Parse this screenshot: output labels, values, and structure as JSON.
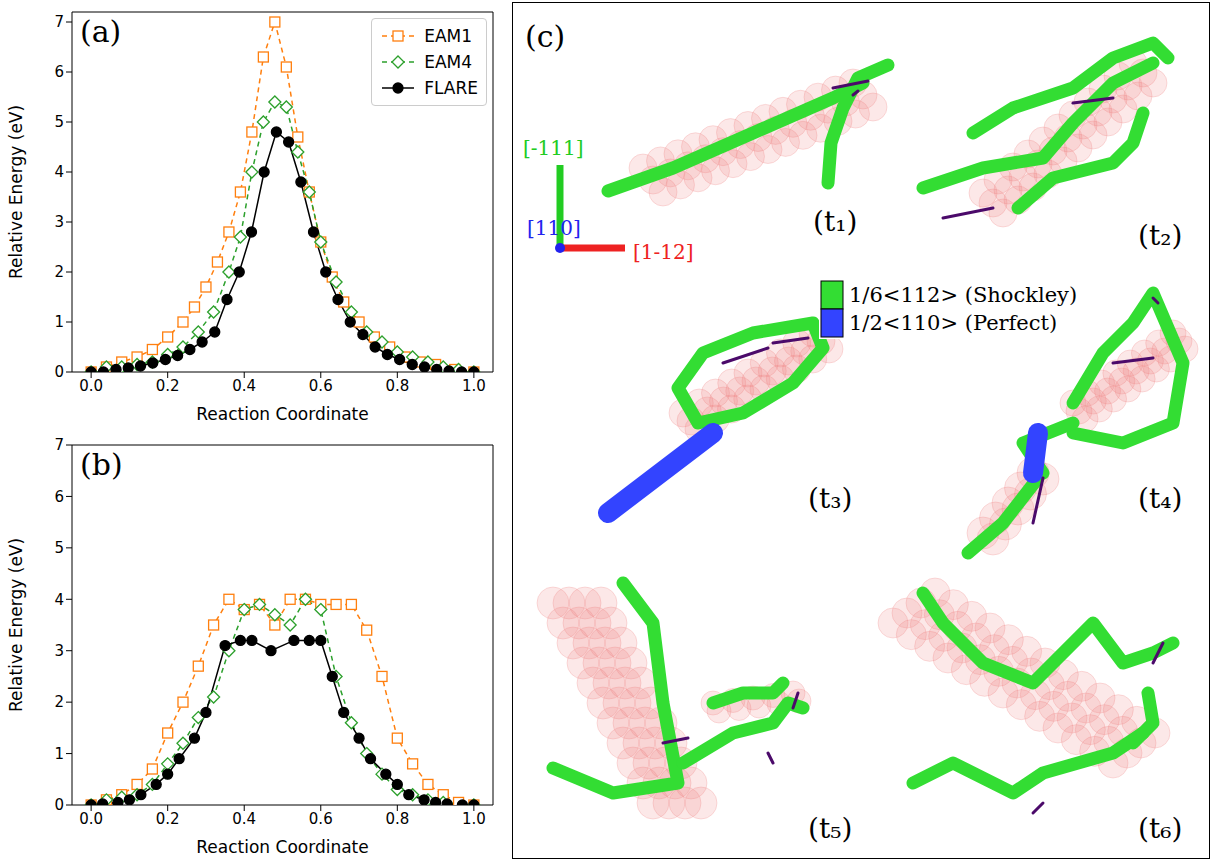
{
  "chart_data": [
    {
      "type": "line",
      "title": "(a)",
      "x_label": "Reaction Coordinate",
      "y_label": "Relative Energy (eV)",
      "xlim": [
        -0.05,
        1.05
      ],
      "ylim": [
        0,
        7.2
      ],
      "xticks": [
        {
          "value": 0,
          "label": "0.0"
        },
        {
          "value": 0.2,
          "label": "0.2"
        },
        {
          "value": 0.4,
          "label": "0.4"
        },
        {
          "value": 0.6,
          "label": "0.6"
        },
        {
          "value": 0.8,
          "label": "0.8"
        },
        {
          "value": 1,
          "label": "1.0"
        }
      ],
      "yticks": [
        0,
        1,
        2,
        3,
        4,
        5,
        6,
        7
      ],
      "grid": false,
      "legend": "upper right",
      "series": [
        {
          "name": "EAM1",
          "color": "#ff7f0e",
          "marker": "open_square",
          "line_style": "dashed",
          "x": [
            0,
            0.04,
            0.08,
            0.12,
            0.16,
            0.2,
            0.24,
            0.27,
            0.3,
            0.33,
            0.36,
            0.39,
            0.42,
            0.45,
            0.48,
            0.51,
            0.54,
            0.57,
            0.6,
            0.63,
            0.66,
            0.7,
            0.74,
            0.78,
            0.82,
            0.86,
            0.9,
            0.95,
            1.0
          ],
          "values": [
            0,
            0.1,
            0.2,
            0.3,
            0.45,
            0.7,
            1.0,
            1.3,
            1.7,
            2.2,
            2.8,
            3.6,
            4.8,
            6.3,
            7.0,
            6.1,
            4.7,
            3.6,
            2.6,
            1.9,
            1.4,
            1.0,
            0.7,
            0.5,
            0.3,
            0.2,
            0.15,
            0.05,
            0
          ]
        },
        {
          "name": "EAM4",
          "color": "#2ca02c",
          "marker": "open_diamond",
          "line_style": "dashed",
          "x": [
            0,
            0.04,
            0.08,
            0.12,
            0.16,
            0.2,
            0.24,
            0.28,
            0.32,
            0.36,
            0.39,
            0.42,
            0.45,
            0.48,
            0.51,
            0.54,
            0.57,
            0.6,
            0.64,
            0.68,
            0.72,
            0.76,
            0.8,
            0.84,
            0.88,
            0.92,
            0.96,
            1.0
          ],
          "values": [
            0,
            0.1,
            0.1,
            0.15,
            0.2,
            0.35,
            0.5,
            0.8,
            1.2,
            2.0,
            2.7,
            4.0,
            5.0,
            5.4,
            5.3,
            4.4,
            3.6,
            2.6,
            1.8,
            1.2,
            0.8,
            0.6,
            0.4,
            0.3,
            0.2,
            0.1,
            0.05,
            0
          ]
        },
        {
          "name": "FLARE",
          "color": "#000000",
          "marker": "circle",
          "line_style": "solid",
          "x": [
            0,
            0.032,
            0.065,
            0.097,
            0.129,
            0.161,
            0.194,
            0.226,
            0.258,
            0.29,
            0.323,
            0.355,
            0.387,
            0.419,
            0.452,
            0.484,
            0.516,
            0.548,
            0.581,
            0.613,
            0.645,
            0.677,
            0.71,
            0.742,
            0.774,
            0.806,
            0.839,
            0.871,
            0.903,
            0.935,
            0.968,
            1.0
          ],
          "values": [
            0,
            0,
            0.05,
            0.08,
            0.12,
            0.18,
            0.25,
            0.33,
            0.45,
            0.6,
            0.8,
            1.45,
            2.0,
            2.8,
            4.0,
            4.8,
            4.6,
            3.8,
            2.8,
            2.0,
            1.45,
            1.0,
            0.75,
            0.5,
            0.35,
            0.25,
            0.15,
            0.1,
            0.05,
            0.02,
            0,
            0
          ]
        }
      ]
    },
    {
      "type": "line",
      "title": "(b)",
      "x_label": "Reaction Coordinate",
      "y_label": "Relative Energy (eV)",
      "xlim": [
        -0.05,
        1.05
      ],
      "ylim": [
        0,
        7
      ],
      "xticks": [
        {
          "value": 0,
          "label": "0.0"
        },
        {
          "value": 0.2,
          "label": "0.2"
        },
        {
          "value": 0.4,
          "label": "0.4"
        },
        {
          "value": 0.6,
          "label": "0.6"
        },
        {
          "value": 0.8,
          "label": "0.8"
        },
        {
          "value": 1,
          "label": "1.0"
        }
      ],
      "yticks": [
        0,
        1,
        2,
        3,
        4,
        5,
        6,
        7
      ],
      "grid": false,
      "series": [
        {
          "name": "EAM1",
          "color": "#ff7f0e",
          "marker": "open_square",
          "line_style": "dashed",
          "x": [
            0,
            0.04,
            0.08,
            0.12,
            0.16,
            0.2,
            0.24,
            0.28,
            0.32,
            0.36,
            0.4,
            0.44,
            0.48,
            0.52,
            0.56,
            0.6,
            0.64,
            0.68,
            0.72,
            0.76,
            0.8,
            0.84,
            0.88,
            0.92,
            0.96,
            1.0
          ],
          "values": [
            0,
            0.1,
            0.2,
            0.4,
            0.7,
            1.4,
            2.0,
            2.7,
            3.5,
            4.0,
            3.8,
            3.9,
            3.5,
            4.0,
            4.0,
            3.9,
            3.9,
            3.9,
            3.4,
            2.5,
            1.3,
            0.8,
            0.4,
            0.2,
            0.05,
            0
          ]
        },
        {
          "name": "EAM4",
          "color": "#2ca02c",
          "marker": "open_diamond",
          "line_style": "dashed",
          "x": [
            0,
            0.04,
            0.08,
            0.12,
            0.16,
            0.2,
            0.24,
            0.28,
            0.32,
            0.36,
            0.4,
            0.44,
            0.48,
            0.52,
            0.56,
            0.6,
            0.64,
            0.68,
            0.72,
            0.76,
            0.8,
            0.84,
            0.88,
            0.92,
            1.0
          ],
          "values": [
            0,
            0.1,
            0.15,
            0.2,
            0.4,
            0.8,
            1.2,
            1.7,
            2.1,
            3.0,
            3.8,
            3.9,
            3.7,
            3.5,
            4.0,
            3.8,
            2.5,
            1.6,
            1.0,
            0.6,
            0.3,
            0.2,
            0.1,
            0.05,
            0
          ]
        },
        {
          "name": "FLARE",
          "color": "#000000",
          "marker": "circle",
          "line_style": "solid",
          "x": [
            0,
            0.03,
            0.07,
            0.1,
            0.13,
            0.17,
            0.2,
            0.23,
            0.27,
            0.3,
            0.35,
            0.39,
            0.42,
            0.47,
            0.53,
            0.57,
            0.6,
            0.63,
            0.66,
            0.7,
            0.73,
            0.77,
            0.8,
            0.83,
            0.87,
            0.9,
            0.93,
            0.97,
            1.0
          ],
          "values": [
            0,
            0.02,
            0.05,
            0.1,
            0.2,
            0.4,
            0.6,
            0.9,
            1.3,
            1.8,
            3.1,
            3.2,
            3.2,
            3.0,
            3.2,
            3.2,
            3.2,
            2.5,
            1.8,
            1.3,
            0.9,
            0.6,
            0.4,
            0.2,
            0.1,
            0.05,
            0.02,
            0,
            0
          ]
        }
      ]
    }
  ],
  "diagram": {
    "label": "(c)",
    "axes": [
      {
        "label": "[-111]",
        "color": "#22cc22"
      },
      {
        "label": "[110]",
        "color": "#2222ee"
      },
      {
        "label": "[1-12]",
        "color": "#ee2222"
      }
    ],
    "legend": [
      {
        "label": "1/6<112> (Shockley)",
        "color": "#33dd33"
      },
      {
        "label": "1/2<110> (Perfect)",
        "color": "#3344ff"
      }
    ],
    "snapshots": [
      "(t₁)",
      "(t₂)",
      "(t₃)",
      "(t₄)",
      "(t₅)",
      "(t₆)"
    ]
  }
}
